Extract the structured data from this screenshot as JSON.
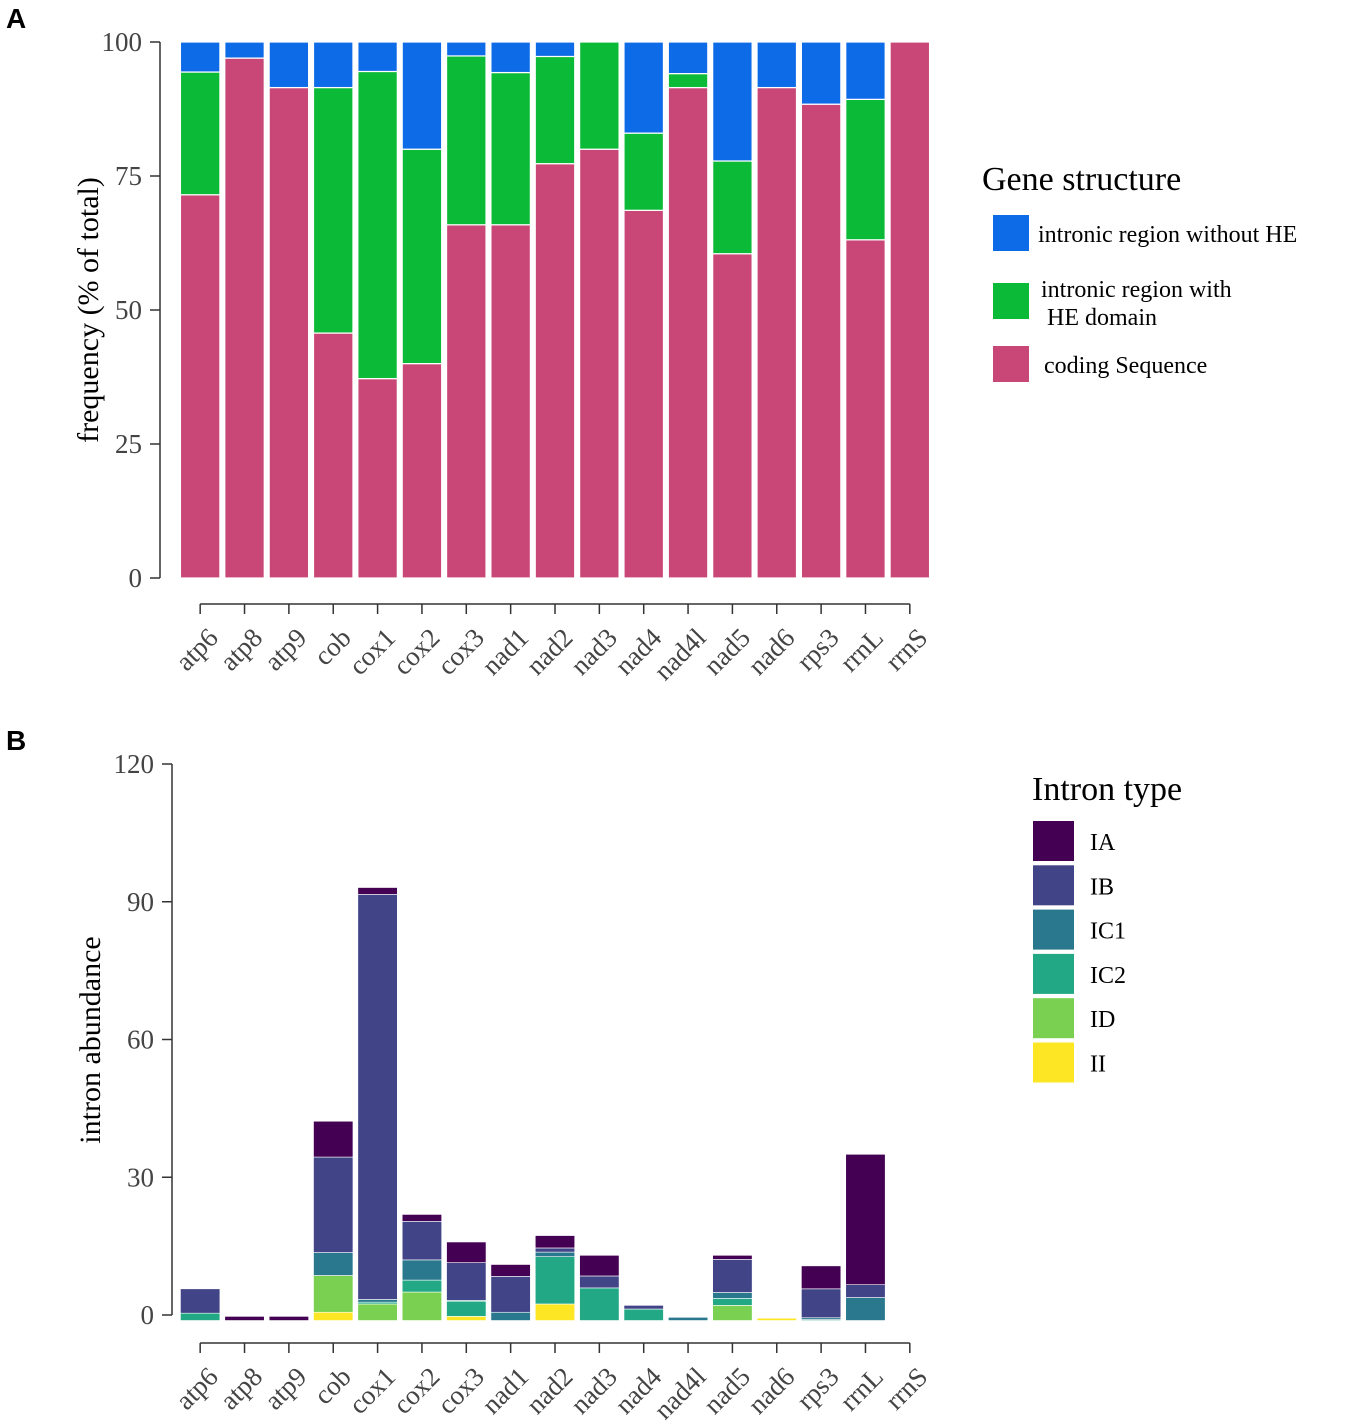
{
  "chart_data": [
    {
      "panel": "A",
      "type": "bar",
      "stacked": true,
      "ylabel": "frequency (% of total)",
      "xlabel": "",
      "ylim": [
        0,
        100
      ],
      "yticks": [
        0,
        25,
        50,
        75,
        100
      ],
      "categories": [
        "atp6",
        "atp8",
        "atp9",
        "cob",
        "cox1",
        "cox2",
        "cox3",
        "nad1",
        "nad2",
        "nad3",
        "nad4",
        "nad4l",
        "nad5",
        "nad6",
        "rps3",
        "rrnL",
        "rrnS"
      ],
      "legend_title": "Gene structure",
      "series": [
        {
          "name": "coding Sequence",
          "color": "#C94776",
          "values": [
            71.5,
            97,
            91.5,
            45.7,
            37.2,
            40,
            65.9,
            65.9,
            77.3,
            80,
            68.6,
            91.5,
            60.5,
            91.5,
            88.4,
            63.1,
            100
          ]
        },
        {
          "name": "intronic region with HE domain",
          "color": "#0BBA36",
          "values": [
            22.9,
            0,
            0,
            45.8,
            57.3,
            40,
            31.5,
            28.4,
            20,
            20,
            14.4,
            2.6,
            17.3,
            0,
            0,
            26.2,
            0
          ]
        },
        {
          "name": "intronic region without HE",
          "color": "#0E6BE8",
          "values": [
            5.6,
            3,
            8.5,
            8.5,
            5.5,
            20,
            2.6,
            5.7,
            2.7,
            0,
            17,
            5.9,
            22.2,
            8.5,
            11.6,
            10.7,
            0
          ]
        }
      ],
      "legend_order": [
        "intronic region without HE",
        "intronic region with HE domain",
        "coding Sequence"
      ]
    },
    {
      "panel": "B",
      "type": "bar",
      "stacked": true,
      "ylabel": "intron abundance",
      "xlabel": "",
      "ylim": [
        0,
        120
      ],
      "yticks": [
        0,
        30,
        60,
        90,
        120
      ],
      "categories": [
        "atp6",
        "atp8",
        "atp9",
        "cob",
        "cox1",
        "cox2",
        "cox3",
        "nad1",
        "nad2",
        "nad3",
        "nad4",
        "nad4l",
        "nad5",
        "nad6",
        "rps3",
        "rrnL",
        "rrnS"
      ],
      "legend_title": "Intron type",
      "baseline_offset": -1.2,
      "series": [
        {
          "name": "II",
          "color": "#FDE725",
          "values": [
            0,
            0,
            0,
            1.8,
            0,
            0,
            0.9,
            0,
            3.6,
            0,
            0,
            0,
            0,
            0.5,
            0,
            0,
            0
          ]
        },
        {
          "name": "ID",
          "color": "#7AD151",
          "values": [
            0,
            0,
            0,
            8.0,
            3.6,
            6.2,
            0,
            0,
            0,
            0,
            0,
            0,
            3.3,
            0,
            0,
            0,
            0
          ]
        },
        {
          "name": "IC2",
          "color": "#22A884",
          "values": [
            1.6,
            0,
            0,
            0,
            0.4,
            2.6,
            3.3,
            0,
            10.3,
            7.1,
            2.5,
            0,
            1.5,
            0,
            0.2,
            0,
            0
          ]
        },
        {
          "name": "IC1",
          "color": "#2A788E",
          "values": [
            0,
            0,
            0,
            5.0,
            0.6,
            4.4,
            0.2,
            1.8,
            1.0,
            0,
            0,
            0.7,
            1.3,
            0,
            0.4,
            5.0,
            0
          ]
        },
        {
          "name": "IB",
          "color": "#414487",
          "values": [
            5.3,
            0,
            0,
            20.8,
            88.2,
            8.4,
            8.2,
            7.8,
            0.9,
            2.6,
            0.8,
            0,
            7.2,
            0,
            6.3,
            2.8,
            0
          ]
        },
        {
          "name": "IA",
          "color": "#440154",
          "values": [
            0,
            0.9,
            0.9,
            7.8,
            1.5,
            1.5,
            4.5,
            2.6,
            2.7,
            4.5,
            0,
            0,
            0.9,
            0,
            5.0,
            28.4,
            0
          ]
        }
      ],
      "legend_order": [
        "IA",
        "IB",
        "IC1",
        "IC2",
        "ID",
        "II"
      ]
    }
  ],
  "panels": {
    "a_label": "A",
    "b_label": "B"
  },
  "legend_a": {
    "title": "Gene structure",
    "items": [
      {
        "line1": "intronic region without HE",
        "line2": "",
        "color": "#0E6BE8"
      },
      {
        "line1": "intronic region with",
        "line2": "HE domain",
        "color": "#0BBA36"
      },
      {
        "line1": "coding Sequence",
        "line2": "",
        "color": "#C94776"
      }
    ]
  },
  "legend_b": {
    "title": "Intron type",
    "items": [
      {
        "label": "IA",
        "color": "#440154"
      },
      {
        "label": "IB",
        "color": "#414487"
      },
      {
        "label": "IC1",
        "color": "#2A788E"
      },
      {
        "label": "IC2",
        "color": "#22A884"
      },
      {
        "label": "ID",
        "color": "#7AD151"
      },
      {
        "label": "II",
        "color": "#FDE725"
      }
    ]
  }
}
